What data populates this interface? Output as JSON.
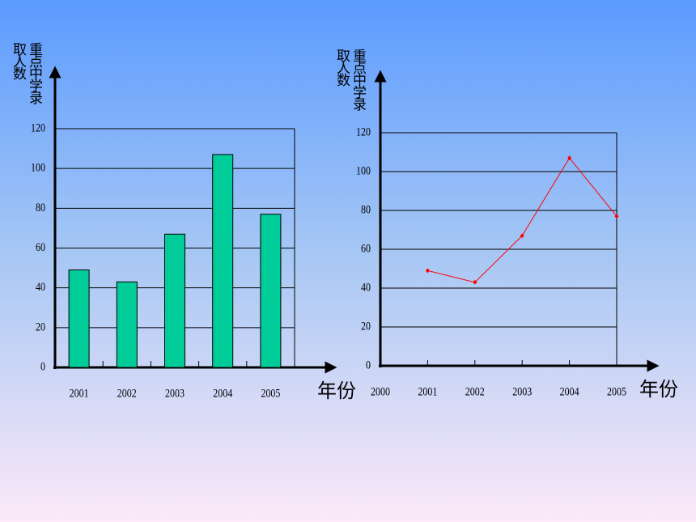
{
  "chart_data": [
    {
      "type": "bar",
      "y_label": "重点中学录取人数",
      "x_label": "年份",
      "categories": [
        "2001",
        "2002",
        "2003",
        "2004",
        "2005"
      ],
      "values": [
        49,
        43,
        67,
        107,
        77
      ],
      "color": "#00cc99",
      "ylim": [
        0,
        120
      ],
      "yticks": [
        0,
        20,
        40,
        60,
        80,
        100,
        120
      ],
      "grid": true
    },
    {
      "type": "line",
      "y_label": "重点中学录取人数",
      "x_label": "年份",
      "x": [
        2001,
        2002,
        2003,
        2004,
        2005
      ],
      "values": [
        49,
        43,
        67,
        107,
        77
      ],
      "color": "#ff0000",
      "xlim": [
        2000,
        2005
      ],
      "xticks": [
        2000,
        2001,
        2002,
        2003,
        2004,
        2005
      ],
      "ylim": [
        0,
        120
      ],
      "yticks": [
        0,
        20,
        40,
        60,
        80,
        100,
        120
      ],
      "grid": true
    }
  ]
}
